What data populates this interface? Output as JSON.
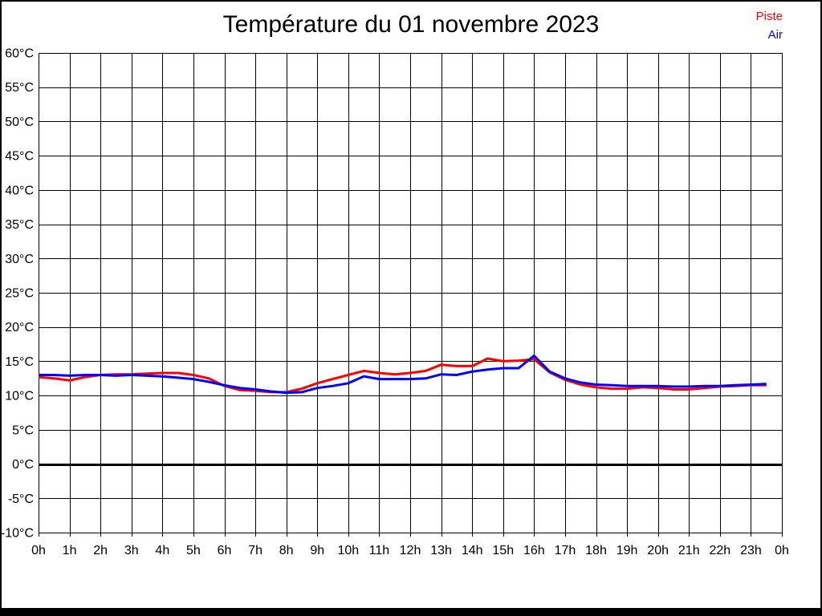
{
  "title": "Température du 01 novembre 2023",
  "legend": [
    {
      "label": "Piste",
      "color": "#ff0000"
    },
    {
      "label": "Air",
      "color": "#0000ff"
    }
  ],
  "chart_data": {
    "type": "line",
    "title": "Température du 01 novembre 2023",
    "xlabel": "",
    "ylabel": "",
    "xlim": [
      0,
      24
    ],
    "ylim": [
      -10,
      60
    ],
    "grid": true,
    "zero_line": true,
    "legend_position": "top-right",
    "x_tick_values": [
      0,
      1,
      2,
      3,
      4,
      5,
      6,
      7,
      8,
      9,
      10,
      11,
      12,
      13,
      14,
      15,
      16,
      17,
      18,
      19,
      20,
      21,
      22,
      23,
      24
    ],
    "x_tick_labels": [
      "0h",
      "1h",
      "2h",
      "3h",
      "4h",
      "5h",
      "6h",
      "7h",
      "8h",
      "9h",
      "10h",
      "11h",
      "12h",
      "13h",
      "14h",
      "15h",
      "16h",
      "17h",
      "18h",
      "19h",
      "20h",
      "21h",
      "22h",
      "23h",
      "0h"
    ],
    "y_tick_values": [
      60,
      55,
      50,
      45,
      40,
      35,
      30,
      25,
      20,
      15,
      10,
      5,
      0,
      -5,
      -10
    ],
    "y_tick_labels": [
      "60°C",
      "55°C",
      "50°C",
      "45°C",
      "40°C",
      "35°C",
      "30°C",
      "25°C",
      "20°C",
      "15°C",
      "10°C",
      "5°C",
      "0°C",
      "-5°C",
      "-10°C"
    ],
    "x": [
      0,
      0.5,
      1,
      1.5,
      2,
      2.5,
      3,
      3.5,
      4,
      4.5,
      5,
      5.5,
      6,
      6.5,
      7,
      7.5,
      8,
      8.5,
      9,
      9.5,
      10,
      10.5,
      11,
      11.5,
      12,
      12.5,
      13,
      13.5,
      14,
      14.5,
      15,
      15.5,
      16,
      16.5,
      17,
      17.5,
      18,
      18.5,
      19,
      19.5,
      20,
      20.5,
      21,
      21.5,
      22,
      22.5,
      23,
      23.5
    ],
    "series": [
      {
        "name": "Piste",
        "color": "#ff0000",
        "values": [
          12.7,
          12.5,
          12.2,
          12.7,
          13.0,
          13.1,
          13.1,
          13.2,
          13.3,
          13.3,
          13.0,
          12.5,
          11.4,
          10.8,
          10.7,
          10.5,
          10.5,
          11.0,
          11.8,
          12.4,
          13.0,
          13.6,
          13.3,
          13.1,
          13.3,
          13.6,
          14.5,
          14.3,
          14.3,
          15.4,
          15.0,
          15.1,
          15.3,
          13.4,
          12.3,
          11.6,
          11.2,
          11.0,
          11.0,
          11.2,
          11.1,
          10.9,
          10.9,
          11.1,
          11.3,
          11.4,
          11.5,
          11.5
        ]
      },
      {
        "name": "Air",
        "color": "#0000ff",
        "values": [
          13.0,
          13.0,
          12.9,
          13.0,
          13.0,
          12.9,
          13.0,
          12.9,
          12.8,
          12.6,
          12.4,
          12.0,
          11.5,
          11.1,
          10.9,
          10.6,
          10.4,
          10.5,
          11.1,
          11.4,
          11.8,
          12.8,
          12.4,
          12.4,
          12.4,
          12.5,
          13.1,
          13.0,
          13.5,
          13.8,
          14.0,
          14.0,
          15.8,
          13.5,
          12.5,
          11.9,
          11.6,
          11.5,
          11.4,
          11.4,
          11.4,
          11.3,
          11.3,
          11.4,
          11.4,
          11.5,
          11.6,
          11.7
        ]
      }
    ]
  }
}
